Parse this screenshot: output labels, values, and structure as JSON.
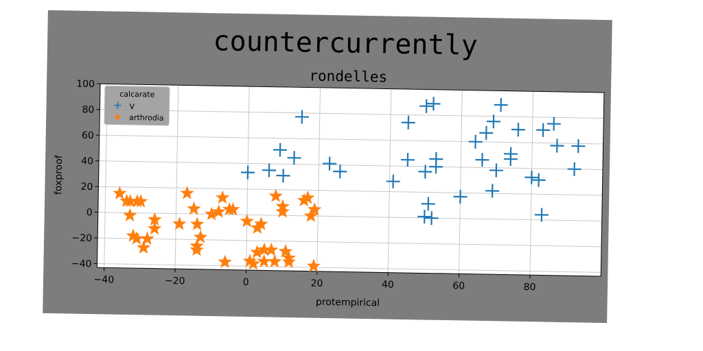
{
  "colors": {
    "panel": "#7d7d7d",
    "plot_bg": "#ffffff",
    "grid": "#c8c8c8",
    "series_v": "#1f77b4",
    "series_arthrodia": "#ff7f0e",
    "legend_bg": "#9a9a9a"
  },
  "chart_data": {
    "type": "scatter",
    "title": "countercurrently",
    "subtitle": "rondelles",
    "xlabel": "protempirical",
    "ylabel": "foxproof",
    "xlim": [
      -42,
      100
    ],
    "ylim": [
      -43,
      100
    ],
    "x_ticks": [
      -40,
      -20,
      0,
      20,
      40,
      60,
      80
    ],
    "x_tick_labels": [
      "−40",
      "−20",
      "0",
      "20",
      "40",
      "60",
      "80"
    ],
    "y_ticks": [
      -40,
      -20,
      0,
      20,
      40,
      60,
      80,
      100
    ],
    "y_tick_labels": [
      "−40",
      "−20",
      "0",
      "20",
      "40",
      "60",
      "80",
      "100"
    ],
    "grid": true,
    "legend": {
      "title": "calcarate",
      "position": "top-left",
      "entries": [
        "V",
        "arthrodia"
      ]
    },
    "series": [
      {
        "name": "V",
        "marker": "plus",
        "points": [
          [
            15,
            77
          ],
          [
            0,
            33
          ],
          [
            6,
            35
          ],
          [
            9,
            51
          ],
          [
            10,
            31
          ],
          [
            13,
            45
          ],
          [
            23,
            41
          ],
          [
            26,
            35
          ],
          [
            41,
            28
          ],
          [
            45,
            74
          ],
          [
            45,
            45
          ],
          [
            50,
            87
          ],
          [
            52,
            89
          ],
          [
            50,
            36
          ],
          [
            53,
            40
          ],
          [
            53,
            46
          ],
          [
            51,
            11
          ],
          [
            50,
            1
          ],
          [
            52,
            0
          ],
          [
            60,
            17
          ],
          [
            64,
            60
          ],
          [
            67,
            67
          ],
          [
            69,
            76
          ],
          [
            66,
            46
          ],
          [
            71,
            89
          ],
          [
            70,
            38
          ],
          [
            69,
            22
          ],
          [
            76,
            70
          ],
          [
            74,
            51
          ],
          [
            74,
            47
          ],
          [
            80,
            33
          ],
          [
            82,
            31
          ],
          [
            83,
            70
          ],
          [
            86,
            75
          ],
          [
            87,
            58
          ],
          [
            83,
            4
          ],
          [
            93,
            58
          ],
          [
            92,
            40
          ]
        ]
      },
      {
        "name": "arthrodia",
        "marker": "star",
        "points": [
          [
            -36,
            15
          ],
          [
            -34,
            9
          ],
          [
            -33,
            9
          ],
          [
            -31,
            9
          ],
          [
            -30,
            9
          ],
          [
            -33,
            -2
          ],
          [
            -32,
            -18
          ],
          [
            -31,
            -20
          ],
          [
            -28,
            -20
          ],
          [
            -29,
            -27
          ],
          [
            -26,
            -5
          ],
          [
            -26,
            -12
          ],
          [
            -19,
            -8
          ],
          [
            -17,
            16
          ],
          [
            -15,
            4
          ],
          [
            -14,
            -8
          ],
          [
            -13,
            -18
          ],
          [
            -14,
            -25
          ],
          [
            -14,
            -28
          ],
          [
            -10,
            0
          ],
          [
            -8,
            2
          ],
          [
            -7,
            13
          ],
          [
            -5,
            4
          ],
          [
            -4,
            4
          ],
          [
            -6,
            -37
          ],
          [
            0,
            -5
          ],
          [
            1,
            -36
          ],
          [
            2,
            -38
          ],
          [
            3,
            -10
          ],
          [
            3,
            -29
          ],
          [
            4,
            -7
          ],
          [
            5,
            -36
          ],
          [
            5,
            -27
          ],
          [
            7,
            -27
          ],
          [
            8,
            -36
          ],
          [
            8,
            15
          ],
          [
            10,
            3
          ],
          [
            10,
            7
          ],
          [
            12,
            -33
          ],
          [
            11,
            -28
          ],
          [
            12,
            -36
          ],
          [
            16,
            12
          ],
          [
            17,
            14
          ],
          [
            18,
            0
          ],
          [
            19,
            5
          ],
          [
            19,
            -39
          ]
        ]
      }
    ]
  }
}
